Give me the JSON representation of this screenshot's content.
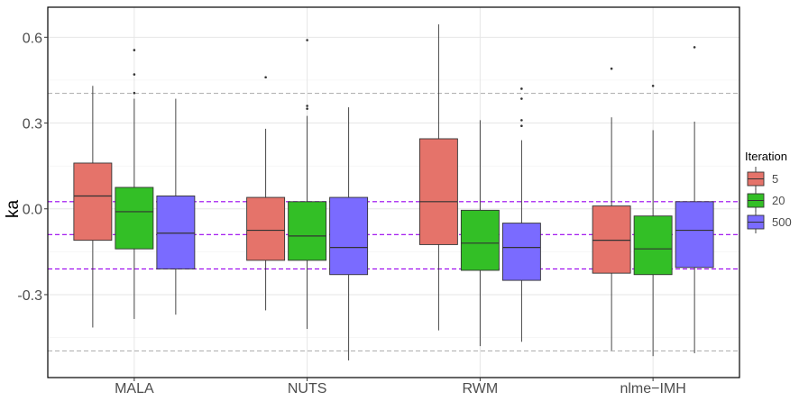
{
  "chart_data": {
    "type": "boxplot",
    "ylabel": "ka",
    "xlabel": "",
    "ylim": [
      -0.59,
      0.705
    ],
    "yticks": [
      -0.3,
      0.0,
      0.3,
      0.6
    ],
    "ytick_labels": [
      "-0.3",
      "0.0",
      "0.3",
      "0.6"
    ],
    "grid": true,
    "legend": {
      "title": "Iteration",
      "position": "right",
      "entries": [
        {
          "label": "5",
          "color": "#E5736A"
        },
        {
          "label": "20",
          "color": "#33BF26"
        },
        {
          "label": "500",
          "color": "#7A6BFF"
        }
      ]
    },
    "categories": [
      "MALA",
      "NUTS",
      "RWM",
      "nlme−IMH"
    ],
    "series": [
      {
        "name": "5",
        "color": "#E5736A",
        "boxes": [
          {
            "min": -0.415,
            "q1": -0.11,
            "median": 0.045,
            "q3": 0.16,
            "max": 0.43,
            "outliers": []
          },
          {
            "min": -0.355,
            "q1": -0.18,
            "median": -0.075,
            "q3": 0.04,
            "max": 0.28,
            "outliers": [
              0.46
            ]
          },
          {
            "min": -0.425,
            "q1": -0.125,
            "median": 0.025,
            "q3": 0.245,
            "max": 0.645,
            "outliers": []
          },
          {
            "min": -0.495,
            "q1": -0.225,
            "median": -0.11,
            "q3": 0.01,
            "max": 0.32,
            "outliers": [
              0.49
            ]
          }
        ]
      },
      {
        "name": "20",
        "color": "#33BF26",
        "boxes": [
          {
            "min": -0.385,
            "q1": -0.14,
            "median": -0.01,
            "q3": 0.075,
            "max": 0.385,
            "outliers": [
              0.405,
              0.47,
              0.555
            ]
          },
          {
            "min": -0.42,
            "q1": -0.18,
            "median": -0.095,
            "q3": 0.025,
            "max": 0.325,
            "outliers": [
              0.35,
              0.36,
              0.59
            ]
          },
          {
            "min": -0.48,
            "q1": -0.215,
            "median": -0.12,
            "q3": -0.005,
            "max": 0.31,
            "outliers": []
          },
          {
            "min": -0.515,
            "q1": -0.23,
            "median": -0.14,
            "q3": -0.025,
            "max": 0.275,
            "outliers": [
              0.43
            ]
          }
        ]
      },
      {
        "name": "500",
        "color": "#7A6BFF",
        "boxes": [
          {
            "min": -0.37,
            "q1": -0.21,
            "median": -0.085,
            "q3": 0.045,
            "max": 0.385,
            "outliers": []
          },
          {
            "min": -0.53,
            "q1": -0.23,
            "median": -0.135,
            "q3": 0.04,
            "max": 0.355,
            "outliers": []
          },
          {
            "min": -0.465,
            "q1": -0.25,
            "median": -0.135,
            "q3": -0.05,
            "max": 0.24,
            "outliers": [
              0.29,
              0.31,
              0.385,
              0.42
            ]
          },
          {
            "min": -0.505,
            "q1": -0.205,
            "median": -0.075,
            "q3": 0.025,
            "max": 0.305,
            "outliers": [
              0.565
            ]
          }
        ]
      }
    ],
    "reference_lines": [
      {
        "y": 0.404,
        "color": "#b3b3b3",
        "style": "dashed"
      },
      {
        "y": 0.025,
        "color": "#9900ee",
        "style": "dashed"
      },
      {
        "y": -0.09,
        "color": "#9900ee",
        "style": "dashed"
      },
      {
        "y": -0.21,
        "color": "#9900ee",
        "style": "dashed"
      },
      {
        "y": -0.497,
        "color": "#b3b3b3",
        "style": "dashed"
      }
    ]
  }
}
